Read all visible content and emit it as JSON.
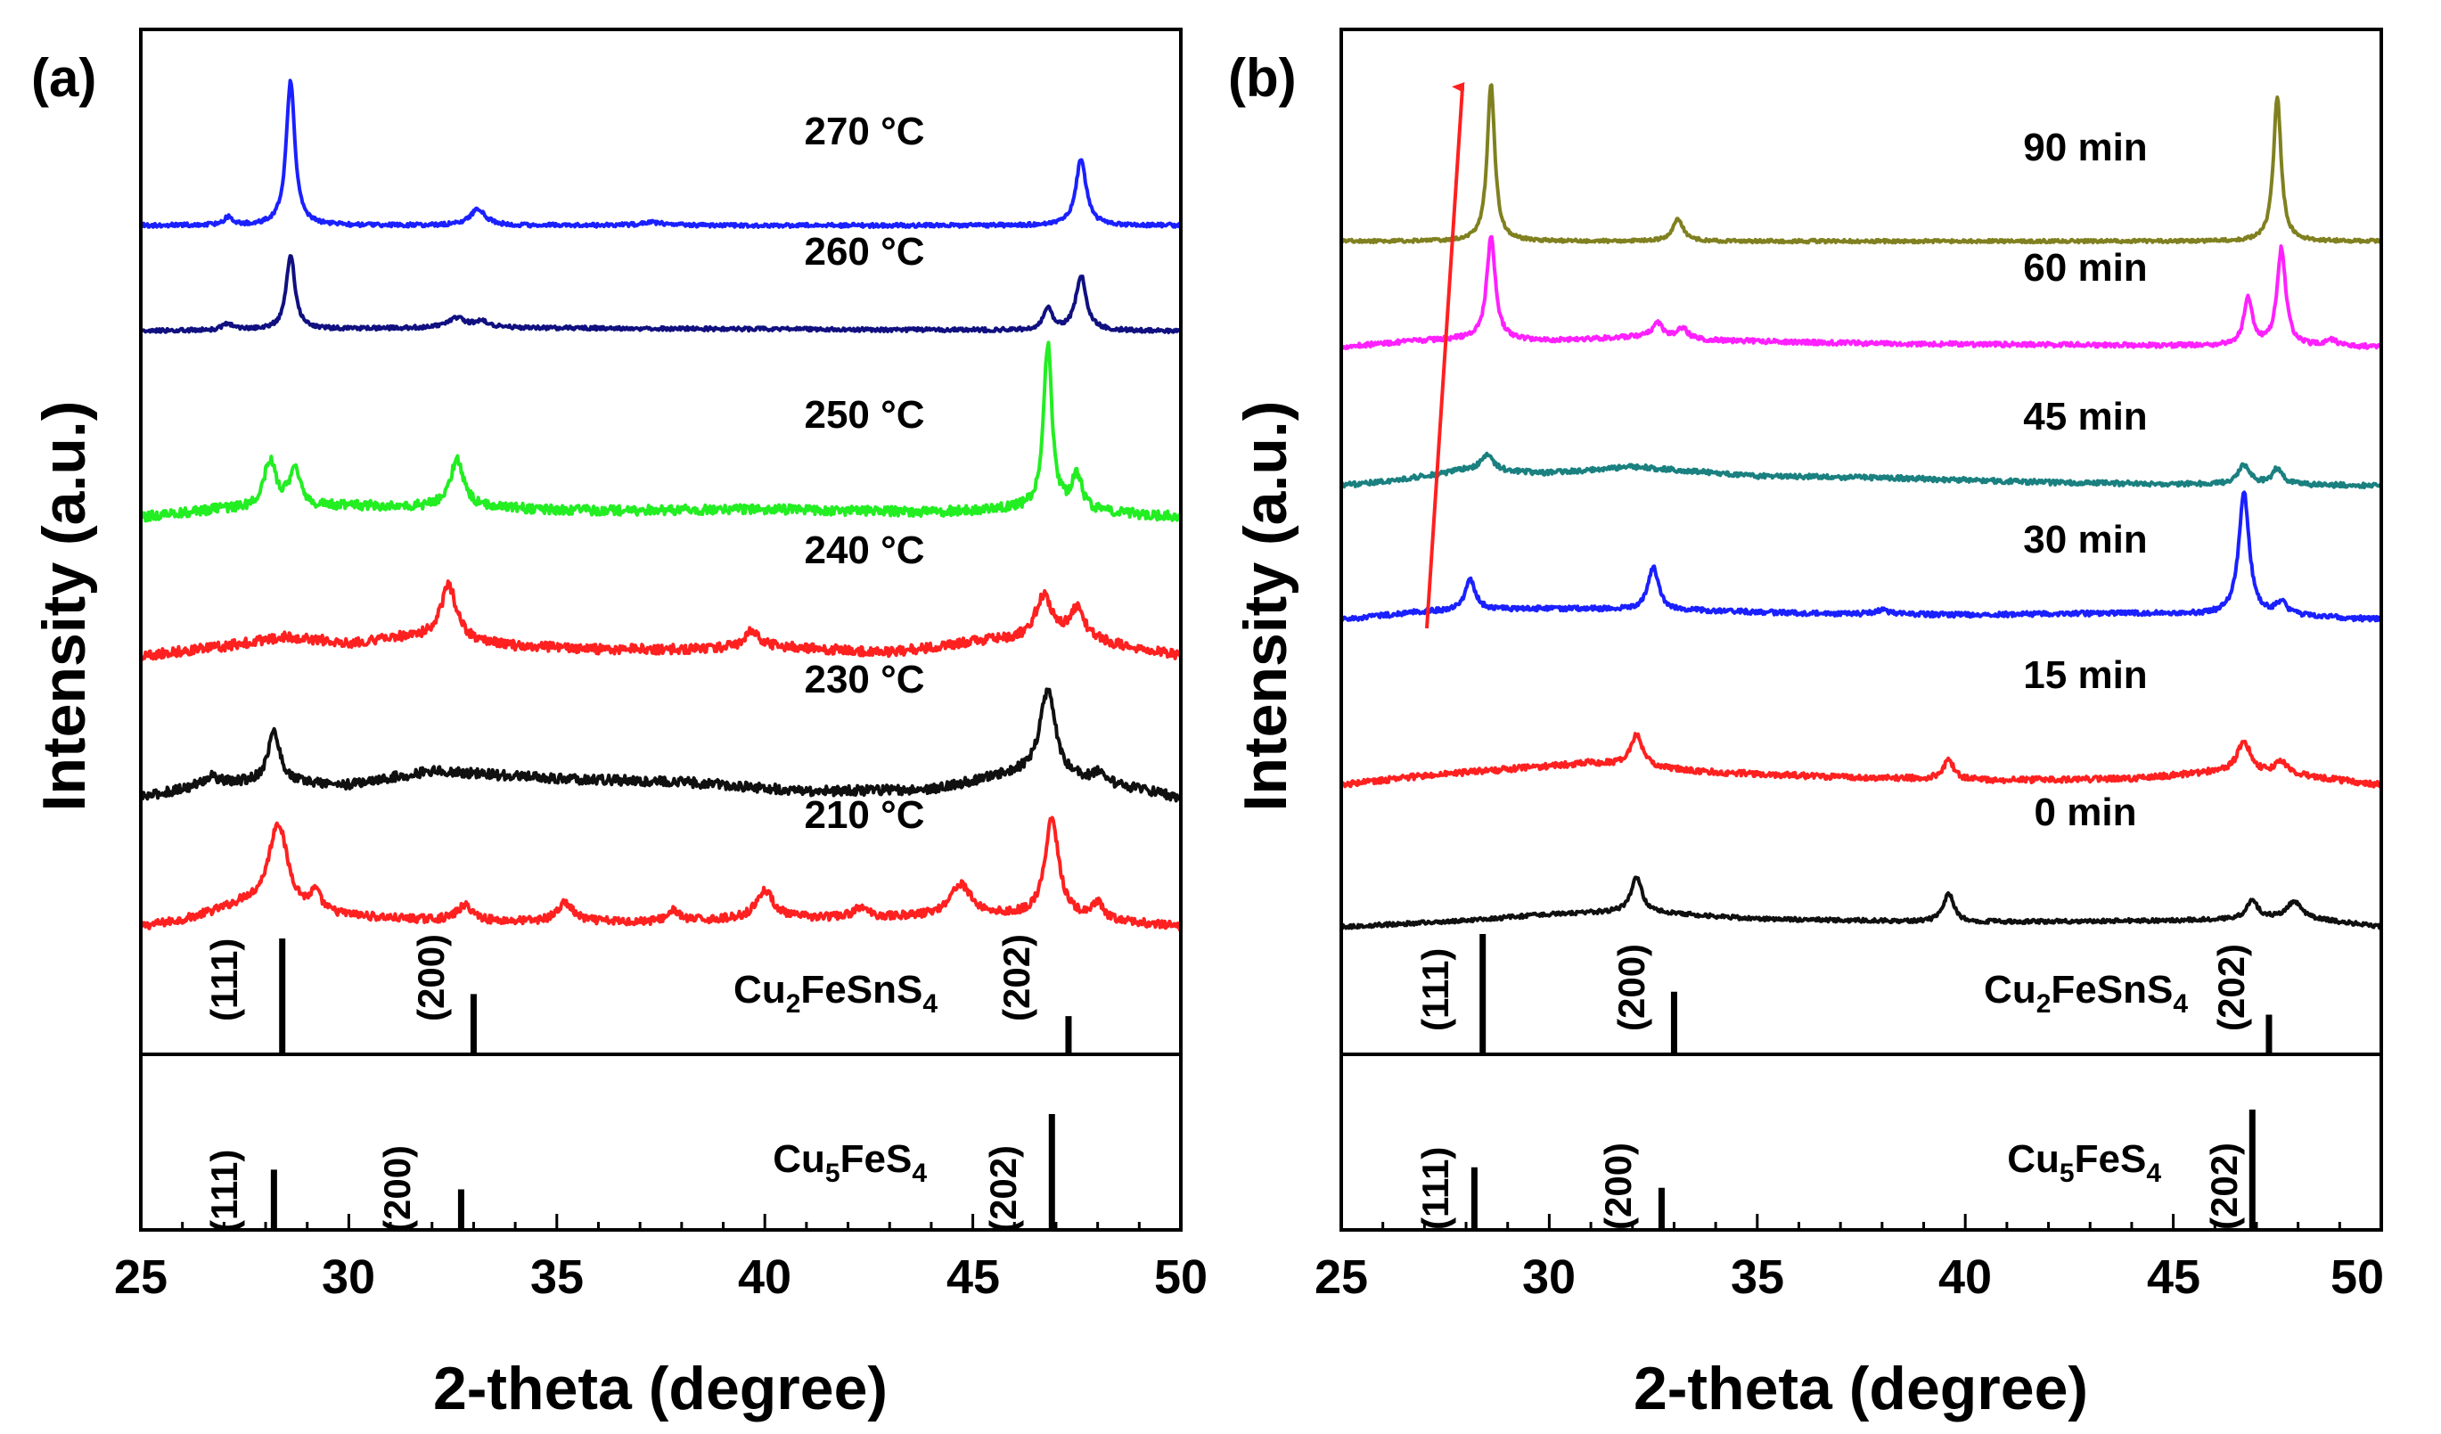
{
  "figure": {
    "x_axis_label": "2-theta (degree)",
    "y_axis_label": "Intensity (a.u.)"
  },
  "chart_data": [
    {
      "type": "line",
      "panel_label": "(a)",
      "title": "",
      "xlabel": "2-theta (degree)",
      "ylabel": "Intensity (a.u.)",
      "xlim": [
        25,
        50
      ],
      "xticks": [
        25,
        30,
        35,
        40,
        45,
        50
      ],
      "tick_labels": [
        "25",
        "30",
        "35",
        "40",
        "45",
        "50"
      ],
      "ylim": [
        0,
        5.4
      ],
      "series": [
        {
          "name": "210 °C",
          "label": "210 °C",
          "color": "#ff2020",
          "baseline": 0.0,
          "noise": 0.025,
          "background": [
            [
              25,
              0.0
            ],
            [
              26,
              0.04
            ],
            [
              27.5,
              0.14
            ],
            [
              29,
              0.08
            ],
            [
              31,
              0.05
            ],
            [
              33,
              0.03
            ],
            [
              37,
              0.03
            ],
            [
              40,
              0.05
            ],
            [
              43,
              0.06
            ],
            [
              45,
              0.07
            ],
            [
              47,
              0.06
            ],
            [
              50,
              0.0
            ]
          ],
          "peaks": [
            [
              28.3,
              0.55,
              0.55
            ],
            [
              29.2,
              0.12,
              0.3
            ],
            [
              32.8,
              0.1,
              0.5
            ],
            [
              35.2,
              0.12,
              0.45
            ],
            [
              37.8,
              0.07,
              0.3
            ],
            [
              40.0,
              0.18,
              0.5
            ],
            [
              42.3,
              0.06,
              0.4
            ],
            [
              44.7,
              0.2,
              0.6
            ],
            [
              46.9,
              0.62,
              0.4
            ],
            [
              48.0,
              0.1,
              0.3
            ]
          ]
        },
        {
          "name": "230 °C",
          "label": "230 °C",
          "color": "#101010",
          "baseline": 0.82,
          "noise": 0.03,
          "background": [
            [
              25,
              0.0
            ],
            [
              26.5,
              0.08
            ],
            [
              28,
              0.1
            ],
            [
              30,
              0.08
            ],
            [
              32,
              0.17
            ],
            [
              35,
              0.12
            ],
            [
              38,
              0.1
            ],
            [
              41,
              0.04
            ],
            [
              44,
              0.05
            ],
            [
              46,
              0.15
            ],
            [
              48,
              0.1
            ],
            [
              50,
              0.0
            ]
          ],
          "peaks": [
            [
              26.7,
              0.05,
              0.4
            ],
            [
              28.2,
              0.32,
              0.35
            ],
            [
              46.8,
              0.55,
              0.45
            ],
            [
              48.0,
              0.05,
              0.3
            ]
          ]
        },
        {
          "name": "240 °C",
          "label": "240 °C",
          "color": "#ff2020",
          "baseline": 1.72,
          "noise": 0.03,
          "background": [
            [
              25,
              0.0
            ],
            [
              27,
              0.06
            ],
            [
              28.5,
              0.12
            ],
            [
              30,
              0.08
            ],
            [
              31.5,
              0.12
            ],
            [
              34,
              0.06
            ],
            [
              36,
              0.04
            ],
            [
              38,
              0.04
            ],
            [
              40,
              0.06
            ],
            [
              43,
              0.02
            ],
            [
              45.5,
              0.1
            ],
            [
              48,
              0.08
            ],
            [
              50,
              0.0
            ]
          ],
          "peaks": [
            [
              32.4,
              0.35,
              0.45
            ],
            [
              39.7,
              0.1,
              0.4
            ],
            [
              46.7,
              0.28,
              0.5
            ],
            [
              47.5,
              0.2,
              0.45
            ]
          ]
        },
        {
          "name": "250 °C",
          "label": "250 °C",
          "color": "#22ee22",
          "baseline": 2.6,
          "noise": 0.03,
          "background": [
            [
              25,
              0.0
            ],
            [
              27,
              0.05
            ],
            [
              30,
              0.07
            ],
            [
              33,
              0.06
            ],
            [
              36,
              0.04
            ],
            [
              40,
              0.05
            ],
            [
              44,
              0.03
            ],
            [
              46,
              0.05
            ],
            [
              48,
              0.03
            ],
            [
              50,
              0.0
            ]
          ],
          "peaks": [
            [
              28.1,
              0.3,
              0.35
            ],
            [
              28.7,
              0.26,
              0.3
            ],
            [
              32.6,
              0.3,
              0.4
            ],
            [
              46.8,
              1.05,
              0.25
            ],
            [
              47.5,
              0.22,
              0.3
            ]
          ]
        },
        {
          "name": "260 °C",
          "label": "260 °C",
          "color": "#101080",
          "baseline": 3.78,
          "noise": 0.012,
          "background": [
            [
              25,
              0.0
            ],
            [
              32,
              0.02
            ],
            [
              34,
              0.02
            ],
            [
              50,
              0.0
            ]
          ],
          "peaks": [
            [
              27.1,
              0.04,
              0.3
            ],
            [
              28.6,
              0.48,
              0.25
            ],
            [
              32.6,
              0.06,
              0.5
            ],
            [
              33.2,
              0.04,
              0.4
            ],
            [
              46.8,
              0.14,
              0.25
            ],
            [
              47.6,
              0.35,
              0.3
            ]
          ]
        },
        {
          "name": "270 °C",
          "label": "270 °C",
          "color": "#1a20ff",
          "baseline": 4.45,
          "noise": 0.012,
          "background": [
            [
              25,
              0.0
            ],
            [
              50,
              0.0
            ]
          ],
          "peaks": [
            [
              27.1,
              0.05,
              0.25
            ],
            [
              28.6,
              0.92,
              0.25
            ],
            [
              33.1,
              0.1,
              0.45
            ],
            [
              37.3,
              0.02,
              0.6
            ],
            [
              47.6,
              0.42,
              0.3
            ]
          ]
        }
      ],
      "references": [
        {
          "name": "Cu2FeSnS4",
          "lines": [
            {
              "x": 28.4,
              "h": 1.0,
              "hkl": "(111)"
            },
            {
              "x": 33.0,
              "h": 0.52,
              "hkl": "(200)"
            },
            {
              "x": 47.3,
              "h": 0.33,
              "hkl": "(202)"
            }
          ]
        },
        {
          "name": "Cu5FeS4",
          "lines": [
            {
              "x": 28.2,
              "h": 0.52,
              "hkl": "(111)"
            },
            {
              "x": 32.7,
              "h": 0.35,
              "hkl": "(200)"
            },
            {
              "x": 46.9,
              "h": 1.0,
              "hkl": "(202)"
            }
          ]
        }
      ]
    },
    {
      "type": "line",
      "panel_label": "(b)",
      "title": "",
      "xlabel": "2-theta (degree)",
      "ylabel": "Intensity (a.u.)",
      "xlim": [
        25,
        50
      ],
      "xticks": [
        25,
        30,
        35,
        40,
        45,
        50
      ],
      "tick_labels": [
        "25",
        "30",
        "35",
        "40",
        "45",
        "50"
      ],
      "ylim": [
        0,
        5.4
      ],
      "series": [
        {
          "name": "0 min",
          "label": "0 min",
          "color": "#101010",
          "baseline": 0.0,
          "noise": 0.012,
          "background": [
            [
              25,
              0.0
            ],
            [
              28,
              0.04
            ],
            [
              30,
              0.08
            ],
            [
              32,
              0.1
            ],
            [
              35,
              0.05
            ],
            [
              40,
              0.03
            ],
            [
              45,
              0.04
            ],
            [
              48,
              0.06
            ],
            [
              50,
              0.0
            ]
          ],
          "peaks": [
            [
              32.1,
              0.22,
              0.3
            ],
            [
              39.6,
              0.18,
              0.3
            ],
            [
              46.9,
              0.12,
              0.3
            ],
            [
              47.9,
              0.1,
              0.4
            ]
          ]
        },
        {
          "name": "15 min",
          "label": "15 min",
          "color": "#ff2020",
          "baseline": 0.9,
          "noise": 0.018,
          "background": [
            [
              25,
              0.0
            ],
            [
              27,
              0.06
            ],
            [
              29,
              0.1
            ],
            [
              31,
              0.14
            ],
            [
              34,
              0.08
            ],
            [
              37,
              0.05
            ],
            [
              41,
              0.03
            ],
            [
              44,
              0.04
            ],
            [
              46,
              0.08
            ],
            [
              48,
              0.06
            ],
            [
              50,
              0.0
            ]
          ],
          "peaks": [
            [
              32.1,
              0.2,
              0.35
            ],
            [
              39.6,
              0.12,
              0.3
            ],
            [
              46.7,
              0.2,
              0.4
            ],
            [
              47.6,
              0.08,
              0.35
            ]
          ]
        },
        {
          "name": "30 min",
          "label": "30 min",
          "color": "#1a20ff",
          "baseline": 1.95,
          "noise": 0.015,
          "background": [
            [
              25,
              0.0
            ],
            [
              27,
              0.05
            ],
            [
              30,
              0.07
            ],
            [
              33,
              0.06
            ],
            [
              36,
              0.04
            ],
            [
              40,
              0.03
            ],
            [
              44,
              0.04
            ],
            [
              48,
              0.02
            ],
            [
              50,
              0.0
            ]
          ],
          "peaks": [
            [
              28.1,
              0.2,
              0.3
            ],
            [
              32.5,
              0.27,
              0.3
            ],
            [
              38.0,
              0.03,
              0.3
            ],
            [
              46.7,
              0.78,
              0.3
            ],
            [
              47.6,
              0.08,
              0.3
            ]
          ]
        },
        {
          "name": "45 min",
          "label": "45 min",
          "color": "#1a8080",
          "baseline": 2.8,
          "noise": 0.015,
          "background": [
            [
              25,
              0.0
            ],
            [
              26.5,
              0.04
            ],
            [
              28,
              0.1
            ],
            [
              30,
              0.08
            ],
            [
              32,
              0.12
            ],
            [
              35,
              0.06
            ],
            [
              38,
              0.05
            ],
            [
              42,
              0.02
            ],
            [
              45,
              0.01
            ],
            [
              50,
              0.0
            ]
          ],
          "peaks": [
            [
              28.5,
              0.1,
              0.35
            ],
            [
              46.7,
              0.12,
              0.35
            ],
            [
              47.5,
              0.1,
              0.3
            ]
          ]
        },
        {
          "name": "60 min",
          "label": "60 min",
          "color": "#ff20ff",
          "baseline": 3.68,
          "noise": 0.014,
          "background": [
            [
              25,
              0.0
            ],
            [
              27,
              0.04
            ],
            [
              28,
              0.05
            ],
            [
              30,
              0.04
            ],
            [
              32,
              0.06
            ],
            [
              34,
              0.04
            ],
            [
              38,
              0.02
            ],
            [
              44,
              0.01
            ],
            [
              50,
              0.0
            ]
          ],
          "peaks": [
            [
              28.6,
              0.65,
              0.25
            ],
            [
              32.6,
              0.1,
              0.3
            ],
            [
              33.2,
              0.07,
              0.3
            ],
            [
              46.8,
              0.3,
              0.25
            ],
            [
              47.6,
              0.62,
              0.25
            ],
            [
              48.8,
              0.04,
              0.3
            ]
          ]
        },
        {
          "name": "90 min",
          "label": "90 min",
          "color": "#808020",
          "baseline": 4.35,
          "noise": 0.01,
          "background": [
            [
              25,
              0.0
            ],
            [
              50,
              0.0
            ]
          ],
          "peaks": [
            [
              28.6,
              1.0,
              0.22
            ],
            [
              33.1,
              0.14,
              0.3
            ],
            [
              47.5,
              0.92,
              0.22
            ]
          ]
        }
      ],
      "references": [
        {
          "name": "Cu2FeSnS4",
          "lines": [
            {
              "x": 28.4,
              "h": 1.0,
              "hkl": "(111)"
            },
            {
              "x": 33.0,
              "h": 0.52,
              "hkl": "(200)"
            },
            {
              "x": 47.3,
              "h": 0.33,
              "hkl": "(202)"
            }
          ]
        },
        {
          "name": "Cu5FeS4",
          "lines": [
            {
              "x": 28.2,
              "h": 0.52,
              "hkl": "(111)"
            },
            {
              "x": 32.7,
              "h": 0.35,
              "hkl": "(200)"
            },
            {
              "x": 46.9,
              "h": 1.0,
              "hkl": "(202)"
            }
          ]
        }
      ],
      "annotation": {
        "type": "arrow",
        "color": "#ff2020",
        "meaning": "increasing reaction time"
      }
    }
  ]
}
